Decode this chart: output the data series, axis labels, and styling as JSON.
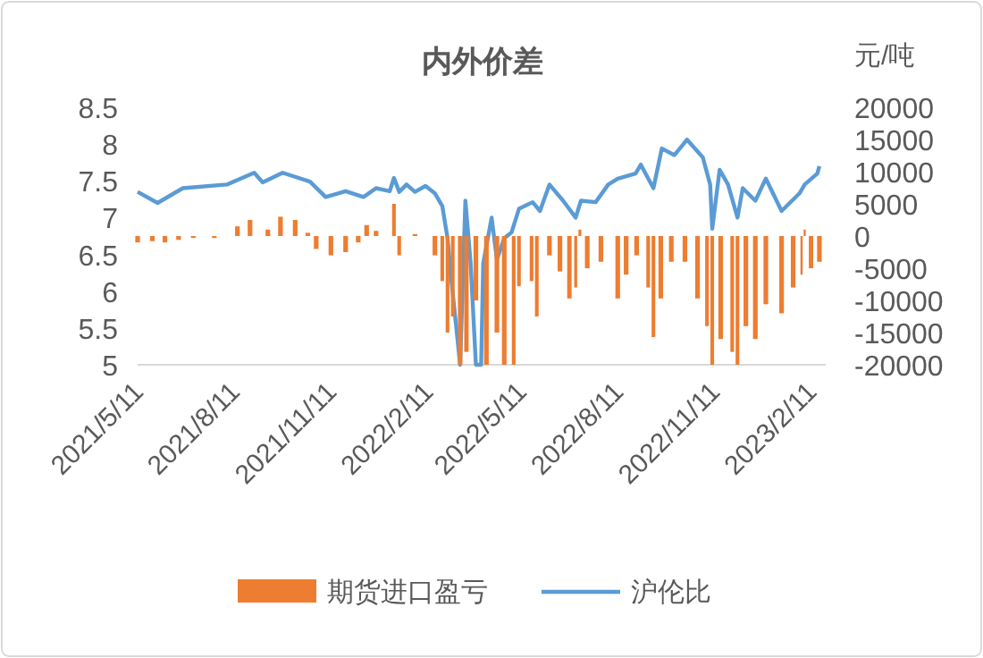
{
  "chart_data": {
    "type": "line",
    "title": "内外价差",
    "y2label": "元/吨",
    "legend": "bottom",
    "xlim": [
      "2021-05-11",
      "2023-02-25"
    ],
    "xticks": [
      {
        "value": "2021-05-11",
        "label": "2021/5/11"
      },
      {
        "value": "2021-08-11",
        "label": "2021/8/11"
      },
      {
        "value": "2021-11-11",
        "label": "2021/11/11"
      },
      {
        "value": "2022-02-11",
        "label": "2022/2/11"
      },
      {
        "value": "2022-05-11",
        "label": "2022/5/11"
      },
      {
        "value": "2022-08-11",
        "label": "2022/8/11"
      },
      {
        "value": "2022-11-11",
        "label": "2022/11/11"
      },
      {
        "value": "2023-02-11",
        "label": "2023/2/11"
      }
    ],
    "ylim": [
      5,
      8.5
    ],
    "yticks": [
      5,
      5.5,
      6,
      6.5,
      7,
      7.5,
      8,
      8.5
    ],
    "y2lim": [
      -20000,
      20000
    ],
    "y2ticks": [
      -20000,
      -15000,
      -10000,
      -5000,
      0,
      5000,
      10000,
      15000,
      20000
    ],
    "series": [
      {
        "name": "期货进口盈亏",
        "type": "bar",
        "axis": "y2",
        "color": "#ed7d31",
        "x": [
          "2021-05-11",
          "2021-05-25",
          "2021-06-06",
          "2021-06-19",
          "2021-07-03",
          "2021-07-23",
          "2021-08-14",
          "2021-08-26",
          "2021-09-12",
          "2021-09-24",
          "2021-10-08",
          "2021-10-20",
          "2021-10-28",
          "2021-11-11",
          "2021-11-25",
          "2021-12-07",
          "2021-12-15",
          "2021-12-24",
          "2022-01-10",
          "2022-01-15",
          "2022-01-30",
          "2022-02-18",
          "2022-02-25",
          "2022-03-02",
          "2022-03-07",
          "2022-03-14",
          "2022-03-20",
          "2022-03-29",
          "2022-04-08",
          "2022-04-18",
          "2022-04-25",
          "2022-05-04",
          "2022-05-09",
          "2022-05-21",
          "2022-05-26",
          "2022-05-31",
          "2022-06-07",
          "2022-06-17",
          "2022-06-26",
          "2022-07-02",
          "2022-07-06",
          "2022-07-13",
          "2022-07-26",
          "2022-08-11",
          "2022-08-19",
          "2022-08-29",
          "2022-09-09",
          "2022-09-14",
          "2022-09-21",
          "2022-10-01",
          "2022-10-14",
          "2022-10-26",
          "2022-11-04",
          "2022-11-09",
          "2022-11-17",
          "2022-11-28",
          "2022-12-03",
          "2022-12-11",
          "2022-12-20",
          "2022-12-30",
          "2023-01-14",
          "2023-01-25",
          "2023-02-02",
          "2023-02-05",
          "2023-02-11",
          "2023-02-19"
        ],
        "values": [
          -1000,
          -800,
          -1000,
          -600,
          -300,
          -300,
          1500,
          2500,
          1000,
          3000,
          2500,
          500,
          -2000,
          -3000,
          -2500,
          -1000,
          1700,
          800,
          5000,
          -3000,
          300,
          -3000,
          -7000,
          -15000,
          -12500,
          -20000,
          -18000,
          -10000,
          -20000,
          -15000,
          -20000,
          -20000,
          -7800,
          -7000,
          -12500,
          null,
          -3000,
          -5500,
          -9700,
          -8000,
          1000,
          -5000,
          -4000,
          -9700,
          -6000,
          -3000,
          -8000,
          -15700,
          -9700,
          -4000,
          -4000,
          -9700,
          -14000,
          -20000,
          -16000,
          -18000,
          -20000,
          -14000,
          -16000,
          -10600,
          -12000,
          -8000,
          -6000,
          1000,
          -5000,
          -4000
        ]
      },
      {
        "name": "沪伦比",
        "color": "#5b9bd5",
        "x": [
          "2021-05-11",
          "2021-05-30",
          "2021-06-23",
          "2021-08-04",
          "2021-08-30",
          "2021-09-07",
          "2021-09-26",
          "2021-10-22",
          "2021-11-06",
          "2021-11-25",
          "2021-12-12",
          "2021-12-24",
          "2022-01-06",
          "2022-01-10",
          "2022-01-15",
          "2022-01-22",
          "2022-01-30",
          "2022-02-09",
          "2022-02-18",
          "2022-02-25",
          "2022-03-02",
          "2022-03-05",
          "2022-03-14",
          "2022-03-19",
          "2022-03-24",
          "2022-03-29",
          "2022-04-03",
          "2022-04-05",
          "2022-04-13",
          "2022-04-18",
          "2022-04-25",
          "2022-05-02",
          "2022-05-09",
          "2022-05-22",
          "2022-05-29",
          "2022-06-07",
          "2022-06-20",
          "2022-07-02",
          "2022-07-07",
          "2022-07-21",
          "2022-08-02",
          "2022-08-11",
          "2022-08-28",
          "2022-09-02",
          "2022-09-14",
          "2022-09-22",
          "2022-10-04",
          "2022-10-16",
          "2022-10-31",
          "2022-11-07",
          "2022-11-09",
          "2022-11-16",
          "2022-11-24",
          "2022-12-03",
          "2022-12-08",
          "2022-12-20",
          "2022-12-30",
          "2023-01-14",
          "2023-01-31",
          "2023-02-05",
          "2023-02-17",
          "2023-02-19"
        ],
        "values": [
          7.35,
          7.2,
          7.4,
          7.45,
          7.61,
          7.48,
          7.61,
          7.49,
          7.28,
          7.36,
          7.28,
          7.4,
          7.36,
          7.54,
          7.35,
          7.45,
          7.35,
          7.43,
          7.33,
          7.16,
          6.72,
          6.24,
          5.0,
          7.23,
          6.38,
          5.0,
          5.0,
          6.38,
          7.0,
          6.43,
          6.72,
          6.8,
          7.12,
          7.21,
          7.09,
          7.45,
          7.23,
          7.0,
          7.23,
          7.21,
          7.45,
          7.53,
          7.6,
          7.72,
          7.4,
          7.94,
          7.85,
          8.06,
          7.82,
          7.45,
          6.85,
          7.65,
          7.45,
          7.0,
          7.4,
          7.23,
          7.53,
          7.09,
          7.33,
          7.45,
          7.6,
          7.7
        ]
      }
    ]
  }
}
